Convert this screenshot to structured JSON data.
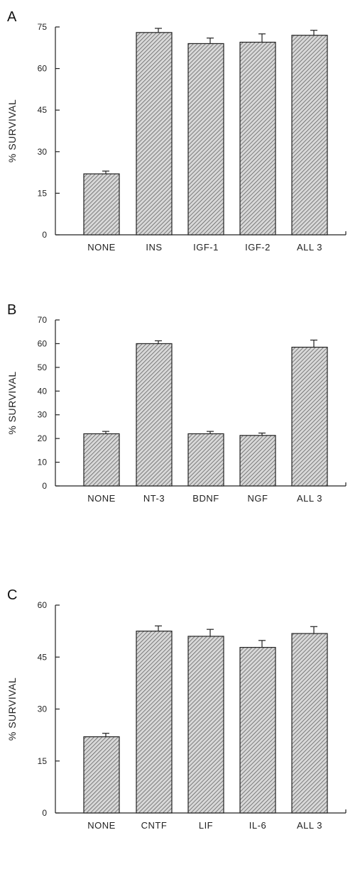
{
  "chart_data": [
    {
      "panel": "A",
      "type": "bar",
      "ylabel": "% SURVIVAL",
      "ylim": [
        0,
        75
      ],
      "yticks": [
        0,
        15,
        30,
        45,
        60,
        75
      ],
      "categories": [
        "NONE",
        "INS",
        "IGF-1",
        "IGF-2",
        "ALL 3"
      ],
      "values": [
        22,
        73,
        69,
        69.5,
        72
      ],
      "errors": [
        1,
        1.5,
        2,
        3,
        1.8
      ]
    },
    {
      "panel": "B",
      "type": "bar",
      "ylabel": "% SURVIVAL",
      "ylim": [
        0,
        70
      ],
      "yticks": [
        0,
        10,
        20,
        30,
        40,
        50,
        60,
        70
      ],
      "categories": [
        "NONE",
        "NT-3",
        "BDNF",
        "NGF",
        "ALL 3"
      ],
      "values": [
        22,
        60,
        22,
        21.3,
        58.5
      ],
      "errors": [
        1,
        1.2,
        1,
        1,
        3
      ]
    },
    {
      "panel": "C",
      "type": "bar",
      "ylabel": "% SURVIVAL",
      "ylim": [
        0,
        60
      ],
      "yticks": [
        0,
        15,
        30,
        45,
        60
      ],
      "categories": [
        "NONE",
        "CNTF",
        "LIF",
        "IL-6",
        "ALL 3"
      ],
      "values": [
        22,
        52.5,
        51,
        47.8,
        51.8
      ],
      "errors": [
        1,
        1.5,
        2,
        2,
        2
      ]
    }
  ]
}
